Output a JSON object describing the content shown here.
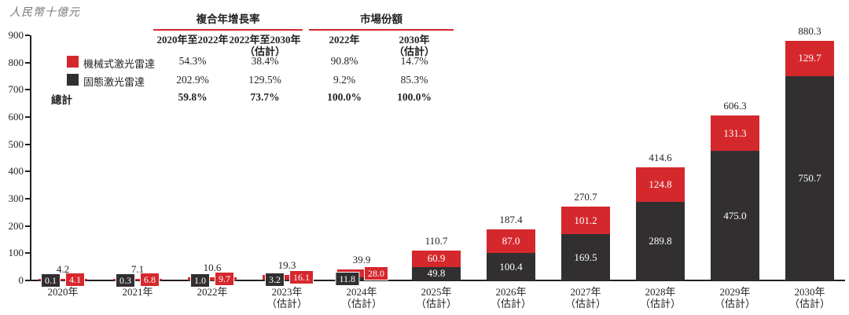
{
  "unit_label": "人民幣十億元",
  "accent_color": "#d5282d",
  "legend": [
    {
      "label": "機械式激光雷達",
      "color": "#d5282d"
    },
    {
      "label": "固態激光雷達",
      "color": "#322f30"
    }
  ],
  "table": {
    "groups": [
      {
        "title": "複合年增長率",
        "columns": [
          "2020年至2022年",
          "2022年至2030年\n（估計）"
        ]
      },
      {
        "title": "市場份額",
        "columns": [
          "2022年",
          "2030年\n（估計）"
        ]
      }
    ],
    "rows": [
      {
        "label": "機械式激光雷達",
        "values": [
          "54.3%",
          "38.4%",
          "90.8%",
          "14.7%"
        ],
        "bold": false
      },
      {
        "label": "固態激光雷達",
        "values": [
          "202.9%",
          "129.5%",
          "9.2%",
          "85.3%"
        ],
        "bold": false
      },
      {
        "label": "總計",
        "values": [
          "59.8%",
          "73.7%",
          "100.0%",
          "100.0%"
        ],
        "bold": true
      }
    ],
    "total_row_label": "總計"
  },
  "chart_data": {
    "type": "bar",
    "stacked": true,
    "title": "",
    "ylabel": "人民幣十億元",
    "ylim": [
      0,
      900
    ],
    "yticks": [
      0,
      100,
      200,
      300,
      400,
      500,
      600,
      700,
      800,
      900
    ],
    "grid": false,
    "legend_position": "upper-left",
    "categories": [
      "2020年",
      "2021年",
      "2022年",
      "2023年\n（估計）",
      "2024年\n（估計）",
      "2025年\n（估計）",
      "2026年\n（估計）",
      "2027年\n（估計）",
      "2028年\n（估計）",
      "2029年\n（估計）",
      "2030年\n（估計）"
    ],
    "series": [
      {
        "name": "固態激光雷達",
        "color": "#322f30",
        "values": [
          0.1,
          0.3,
          1.0,
          3.2,
          11.8,
          49.8,
          100.4,
          169.5,
          289.8,
          475.0,
          750.7
        ]
      },
      {
        "name": "機械式激光雷達",
        "color": "#d5282d",
        "values": [
          4.1,
          6.8,
          9.7,
          16.1,
          28.0,
          60.9,
          87.0,
          101.2,
          124.8,
          131.3,
          129.7
        ]
      }
    ],
    "totals": [
      4.2,
      7.1,
      10.6,
      19.3,
      39.9,
      110.7,
      187.4,
      270.7,
      414.6,
      606.3,
      880.3
    ]
  }
}
